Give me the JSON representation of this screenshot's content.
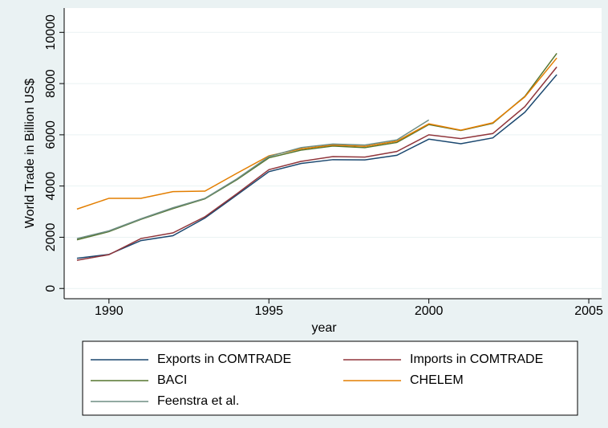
{
  "chart_data": {
    "type": "line",
    "x_label": "year",
    "y_label": "World Trade in Billion US$",
    "x": [
      1989,
      1990,
      1991,
      1992,
      1993,
      1994,
      1995,
      1996,
      1997,
      1998,
      1999,
      2000,
      2001,
      2002,
      2003,
      2004
    ],
    "series": [
      {
        "name": "Exports in COMTRADE",
        "color": "#1a476f",
        "values": [
          1180,
          1330,
          1870,
          2060,
          2750,
          3650,
          4560,
          4880,
          5030,
          5020,
          5200,
          5830,
          5650,
          5880,
          6880,
          8350
        ]
      },
      {
        "name": "Imports in COMTRADE",
        "color": "#90353b",
        "values": [
          1100,
          1320,
          1950,
          2170,
          2800,
          3700,
          4640,
          4960,
          5150,
          5130,
          5350,
          6000,
          5850,
          6050,
          7100,
          8650
        ]
      },
      {
        "name": "BACI",
        "color": "#55752f",
        "values": [
          1900,
          2220,
          2700,
          3120,
          3500,
          4250,
          5100,
          5400,
          5560,
          5500,
          5700,
          6400,
          6170,
          6450,
          7500,
          9180
        ]
      },
      {
        "name": "CHELEM",
        "color": "#e37e00",
        "values": [
          3100,
          3520,
          3520,
          3780,
          3800,
          4500,
          5180,
          5450,
          5600,
          5550,
          5750,
          6430,
          6180,
          6470,
          7480,
          9000
        ]
      },
      {
        "name": "Feenstra et al.",
        "color": "#6e8e84",
        "values": [
          1950,
          2250,
          2720,
          3150,
          3520,
          4280,
          5150,
          5500,
          5640,
          5600,
          5800,
          6580,
          null,
          null,
          null,
          null
        ]
      }
    ],
    "xlim": [
      1988.6,
      2005.4
    ],
    "xticks": [
      1990,
      1995,
      2000,
      2005
    ],
    "ylim": [
      -400,
      10950
    ],
    "yticks": [
      0,
      2000,
      4000,
      6000,
      8000,
      10000
    ],
    "grid": true,
    "legend": "bottom"
  }
}
